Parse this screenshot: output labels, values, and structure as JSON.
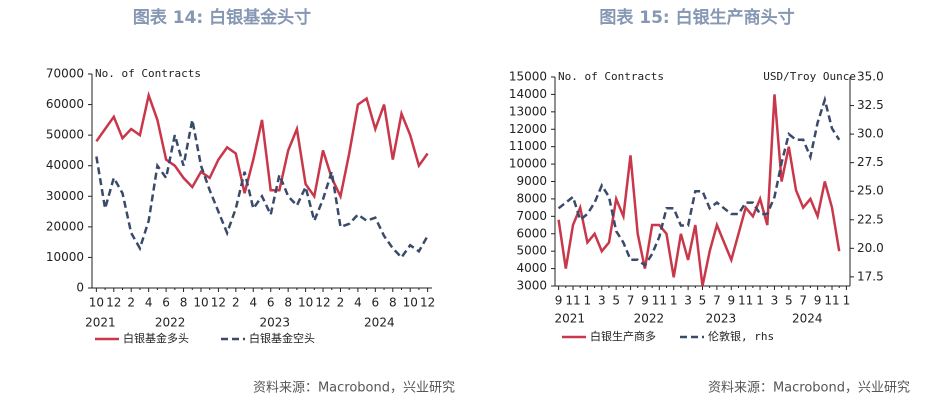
{
  "chart_data": [
    {
      "type": "line",
      "title": "图表 14: 白银基金头寸",
      "y_label": "No. of Contracts",
      "source": "资料来源：Macrobond，兴业研究",
      "categories": [
        "10",
        null,
        "12",
        null,
        "2",
        null,
        "4",
        null,
        "6",
        null,
        "8",
        null,
        "10",
        null,
        "12",
        null,
        "2",
        null,
        "4",
        null,
        "6",
        null,
        "8",
        null,
        "10",
        null,
        "12",
        null,
        "2",
        null,
        "4",
        null,
        "6",
        null,
        "8",
        null,
        "10",
        null,
        "12"
      ],
      "years": [
        "2021",
        "2022",
        "2023",
        "2024"
      ],
      "ylim": [
        0,
        70000
      ],
      "yticks": [
        0,
        10000,
        20000,
        30000,
        40000,
        50000,
        60000,
        70000
      ],
      "series": [
        {
          "name": "白银基金多头",
          "color": "#c8374a",
          "dash": false,
          "values": [
            48000,
            52000,
            56000,
            49000,
            52000,
            50000,
            63000,
            55000,
            42000,
            40000,
            36000,
            33000,
            38000,
            36000,
            42000,
            46000,
            44000,
            31000,
            42000,
            55000,
            32000,
            32000,
            45000,
            52000,
            34000,
            30000,
            45000,
            36000,
            30000,
            44000,
            60000,
            62000,
            52000,
            60000,
            42000,
            57000,
            50000,
            40000,
            44000
          ]
        },
        {
          "name": "白银基金空头",
          "color": "#3a4a6b",
          "dash": true,
          "values": [
            43000,
            26000,
            36000,
            31000,
            18000,
            13000,
            22000,
            40000,
            36000,
            50000,
            40000,
            55000,
            40000,
            32000,
            25000,
            18000,
            26000,
            38000,
            26000,
            30000,
            24000,
            37000,
            30000,
            27000,
            33000,
            22000,
            29000,
            38000,
            20000,
            21000,
            24000,
            22000,
            23000,
            17000,
            13000,
            10000,
            14000,
            12000,
            17000
          ]
        }
      ]
    },
    {
      "type": "line",
      "title": "图表 15: 白银生产商头寸",
      "y_label": "No. of Contracts",
      "y2_label": "USD/Troy Ounce",
      "source": "资料来源：Macrobond，兴业研究",
      "categories": [
        "9",
        null,
        "11",
        null,
        "1",
        null,
        "3",
        null,
        "5",
        null,
        "7",
        null,
        "9",
        null,
        "11",
        null,
        "1",
        null,
        "3",
        null,
        "5",
        null,
        "7",
        null,
        "9",
        null,
        "11",
        null,
        "1",
        null,
        "3",
        null,
        "5",
        null,
        "7",
        null,
        "9",
        null,
        "11",
        null,
        "1"
      ],
      "years": [
        "2021",
        "2022",
        "2023",
        "2024"
      ],
      "ylim": [
        3000,
        15000
      ],
      "yticks": [
        3000,
        4000,
        5000,
        6000,
        7000,
        8000,
        9000,
        10000,
        11000,
        12000,
        13000,
        14000,
        15000
      ],
      "y2lim": [
        16.7,
        35.0
      ],
      "y2ticks": [
        {
          "value": 17.5,
          "label": "17.5"
        },
        {
          "value": 20,
          "label": "20.0"
        },
        {
          "value": 22.5,
          "label": "22.5"
        },
        {
          "value": 25,
          "label": "25.0"
        },
        {
          "value": 27.5,
          "label": "27.5"
        },
        {
          "value": 30,
          "label": "30.0"
        },
        {
          "value": 32.5,
          "label": "32.5"
        },
        {
          "value": 35,
          "label": "35.0"
        }
      ],
      "series": [
        {
          "name": "白银生产商多",
          "color": "#c8374a",
          "dash": false,
          "values": [
            6800,
            4000,
            6500,
            7500,
            5500,
            6000,
            5000,
            5500,
            8000,
            7000,
            10500,
            6000,
            4000,
            6500,
            6500,
            6000,
            3500,
            6000,
            4500,
            6500,
            3000,
            5000,
            6500,
            5500,
            4500,
            6000,
            7500,
            7000,
            8000,
            6500,
            14000,
            9000,
            11000,
            8500,
            7500,
            8000,
            7000,
            9000,
            7500,
            5000,
            null
          ]
        },
        {
          "name": "伦敦银, rhs",
          "color": "#3a4a6b",
          "dash": true,
          "axis": "y2",
          "values": [
            23.5,
            24,
            24.5,
            22.5,
            23,
            24,
            25.5,
            24.5,
            21.5,
            20.5,
            19,
            19,
            18.5,
            19.5,
            21,
            23.5,
            23.5,
            22,
            22,
            25,
            25,
            23.5,
            24,
            23.5,
            23,
            23,
            24,
            24,
            23,
            23,
            24.5,
            27.5,
            30,
            29.5,
            29.5,
            28,
            31,
            33,
            30.5,
            29.5,
            null
          ]
        }
      ]
    }
  ]
}
